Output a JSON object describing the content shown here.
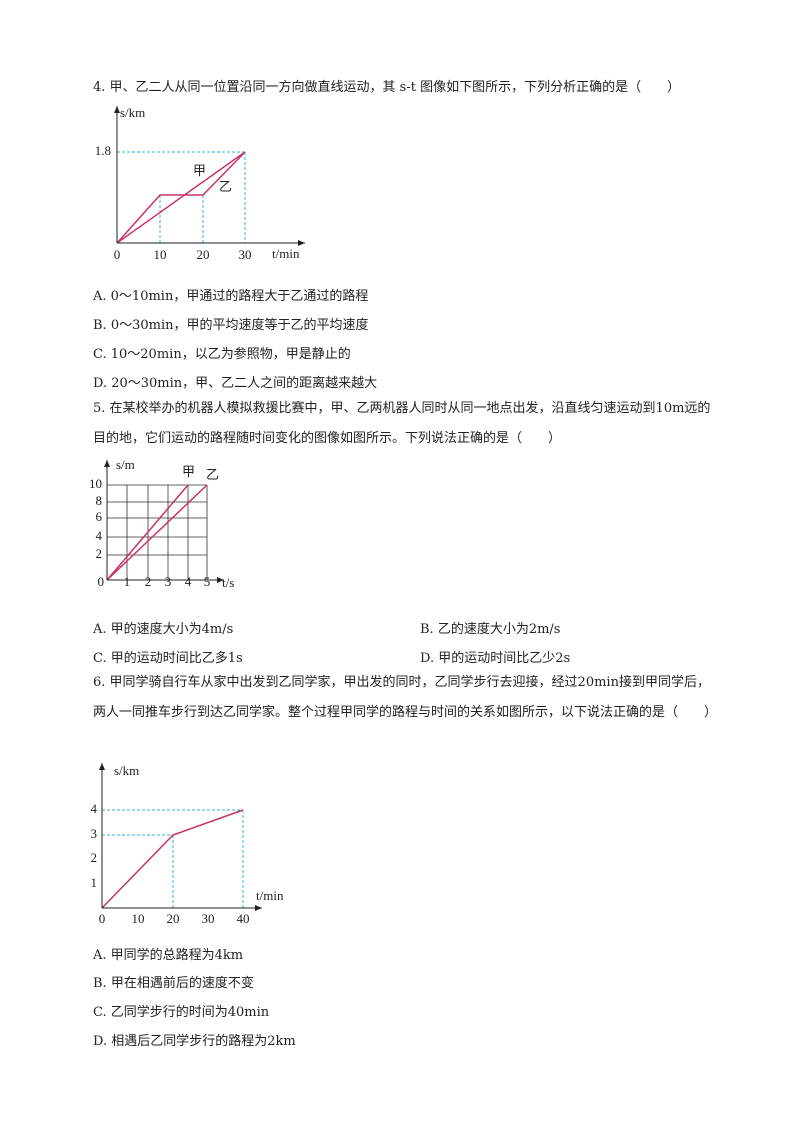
{
  "questions": [
    {
      "number": "4.",
      "stem": "甲、乙二人从同一位置沿同一方向做直线运动，其 s-t 图像如下图所示，下列分析正确的是（　　）",
      "figure": {
        "y_label": "s/km",
        "x_label": "t/min",
        "yticks": [
          "1.8"
        ],
        "xticks": [
          "0",
          "10",
          "20",
          "30"
        ],
        "line_labels": [
          "甲",
          "乙"
        ]
      },
      "options": [
        "A. 0～10min，甲通过的路程大于乙通过的路程",
        "B.  0～30min，甲的平均速度等于乙的平均速度",
        "C.  10～20min，以乙为参照物，甲是静止的",
        "D.  20～30min，甲、乙二人之间的距离越来越大"
      ]
    },
    {
      "number": "5.",
      "stem": "在某校举办的机器人模拟救援比赛中，甲、乙两机器人同时从同一地点出发，沿直线匀速运动到10m远的目的地，它们运动的路程随时间变化的图像如图所示。下列说法正确的是（　　）",
      "figure": {
        "y_label": "s/m",
        "x_label": "t/s",
        "yticks": [
          "2",
          "4",
          "6",
          "8",
          "10"
        ],
        "xticks": [
          "0",
          "1",
          "2",
          "3",
          "4",
          "5"
        ],
        "line_labels": [
          "甲",
          "乙"
        ]
      },
      "options": [
        "A.  甲的速度大小为4m/s",
        "B.  乙的速度大小为2m/s",
        "C.  甲的运动时间比乙多1s",
        "D.  甲的运动时间比乙少2s"
      ]
    },
    {
      "number": "6.",
      "stem": "甲同学骑自行车从家中出发到乙同学家，甲出发的同时，乙同学步行去迎接，经过20min接到甲同学后，两人一同推车步行到达乙同学家。整个过程甲同学的路程与时间的关系如图所示，以下说法正确的是（　　）",
      "figure": {
        "y_label": "s/km",
        "x_label": "t/min",
        "yticks": [
          "1",
          "2",
          "3",
          "4"
        ],
        "xticks": [
          "0",
          "10",
          "20",
          "30",
          "40"
        ]
      },
      "options": [
        "A.  甲同学的总路程为4km",
        "B.  甲在相遇前后的速度不变",
        "C.  乙同学步行的时间为40min",
        "D.  相遇后乙同学步行的路程为2km"
      ]
    }
  ]
}
